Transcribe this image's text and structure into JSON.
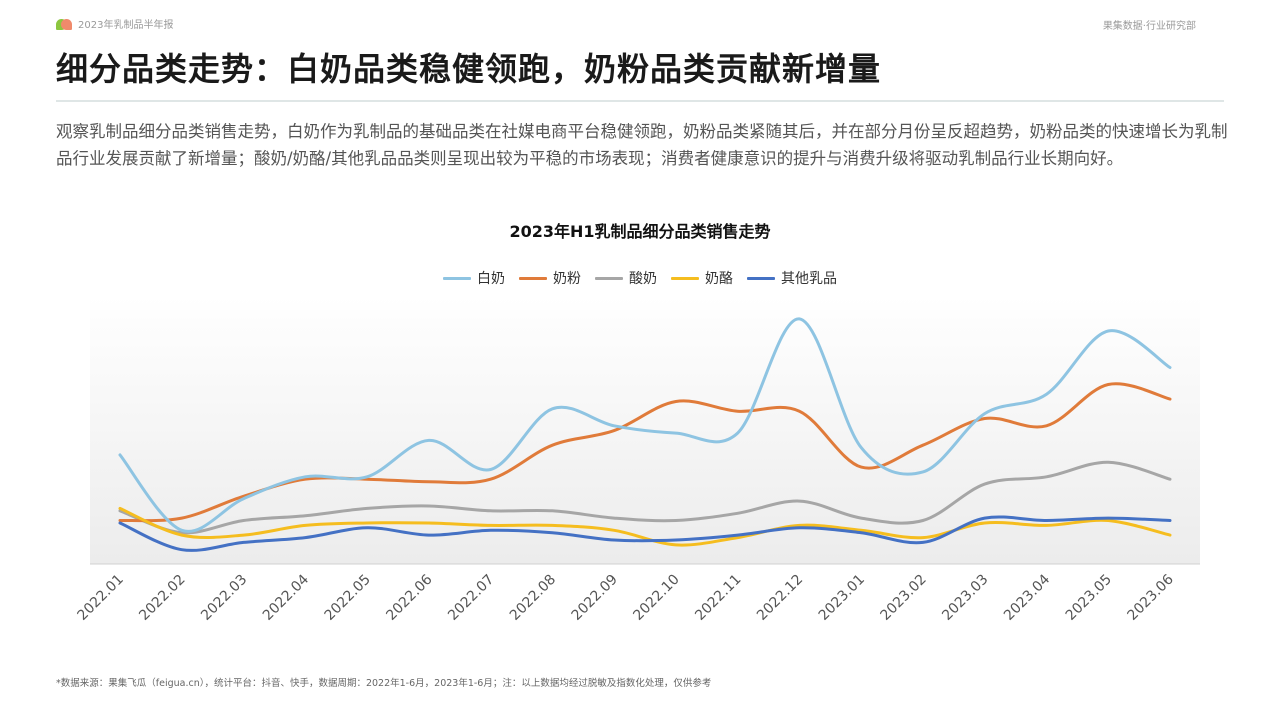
{
  "header": {
    "report_label": "2023年乳制品半年报",
    "org_label": "果集数据·行业研究部"
  },
  "page_title": "细分品类走势：白奶品类稳健领跑，奶粉品类贡献新增量",
  "intro": "观察乳制品细分品类销售走势，白奶作为乳制品的基础品类在社媒电商平台稳健领跑，奶粉品类紧随其后，并在部分月份呈反超趋势，奶粉品类的快速增长为乳制品行业发展贡献了新增量；酸奶/奶酪/其他乳品品类则呈现出较为平稳的市场表现；消费者健康意识的提升与消费升级将驱动乳制品行业长期向好。",
  "footnote": "*数据来源：果集飞瓜（feigua.cn），统计平台：抖音、快手，数据周期：2022年1-6月，2023年1-6月；注：以上数据均经过脱敏及指数化处理，仅供参考",
  "chart_data": {
    "type": "line",
    "title": "2023年H1乳制品细分品类销售走势",
    "xlabel": "",
    "ylabel": "",
    "ylim": [
      0,
      100
    ],
    "grid": false,
    "legend_position": "top-center",
    "categories": [
      "2022.01",
      "2022.02",
      "2022.03",
      "2022.04",
      "2022.05",
      "2022.06",
      "2022.07",
      "2022.08",
      "2022.09",
      "2022.10",
      "2022.11",
      "2022.12",
      "2023.01",
      "2023.02",
      "2023.03",
      "2023.04",
      "2023.05",
      "2023.06"
    ],
    "series": [
      {
        "name": "白奶",
        "color": "#8ec4e2",
        "values": [
          42,
          11,
          24,
          33,
          33,
          48,
          36,
          61,
          54,
          51,
          51,
          98,
          45,
          35,
          59,
          67,
          93,
          78
        ]
      },
      {
        "name": "奶粉",
        "color": "#e07b3a",
        "values": [
          15,
          16,
          25,
          32,
          32,
          31,
          32,
          46,
          52,
          64,
          60,
          60,
          37,
          46,
          57,
          54,
          71,
          65
        ]
      },
      {
        "name": "酸奶",
        "color": "#a6a6a6",
        "values": [
          19,
          10,
          15,
          17,
          20,
          21,
          19,
          19,
          16,
          15,
          18,
          23,
          16,
          15,
          30,
          33,
          39,
          32
        ]
      },
      {
        "name": "奶酪",
        "color": "#f5bd1f",
        "values": [
          20,
          9,
          9,
          13,
          14,
          14,
          13,
          13,
          11,
          5,
          8,
          13,
          11,
          8,
          14,
          13,
          15,
          9
        ]
      },
      {
        "name": "其他乳品",
        "color": "#4471c4",
        "values": [
          14,
          3,
          6,
          8,
          12,
          9,
          11,
          10,
          7,
          7,
          9,
          12,
          10,
          6,
          16,
          15,
          16,
          15
        ]
      }
    ]
  }
}
